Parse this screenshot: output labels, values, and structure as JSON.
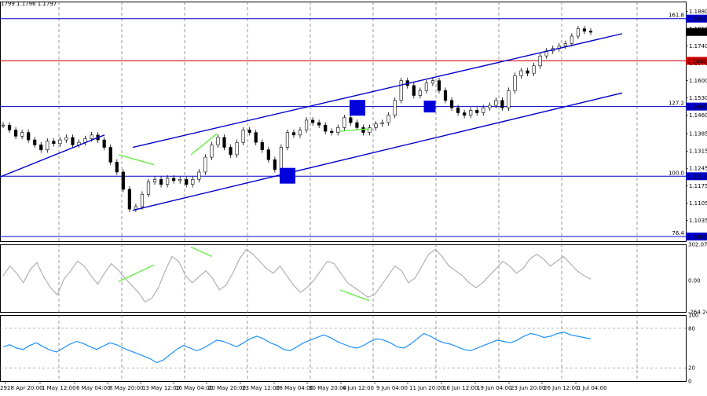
{
  "header": {
    "ohlc_text": "1799 1.1796 1.1797"
  },
  "chart_data": {
    "type": "line",
    "instrument_quote": "EURUSD",
    "x_axis": {
      "labels": [
        "28 Apr 20:00",
        "1 May 12:00",
        "6 May 04:00",
        "8 May 20:00",
        "13 May 12:00",
        "16 May 04:00",
        "20 May 20:00",
        "23 May 12:00",
        "28 May 04:00",
        "30 May 20:00",
        "4 Jun 12:00",
        "9 Jun 04:00",
        "11 Jun 20:00",
        "16 Jun 12:00",
        "19 Jun 04:00",
        "23 Jun 20:00",
        "26 Jun 12:00",
        "1 Jul 04:00"
      ],
      "first_label_partial": "29"
    },
    "price_panel": {
      "ylim": [
        1.095,
        1.192
      ],
      "ticks": [
        "1.1880",
        "1.1810",
        "1.1740",
        "1.1670",
        "1.1600",
        "1.1530",
        "1.1460",
        "1.1385",
        "1.1315",
        "1.1245",
        "1.1175",
        "1.1105",
        "1.1035"
      ],
      "current_price": "1.1797",
      "close_series": [
        1.142,
        1.14,
        1.1375,
        1.139,
        1.136,
        1.134,
        1.132,
        1.1355,
        1.1345,
        1.136,
        1.137,
        1.134,
        1.135,
        1.1365,
        1.138,
        1.136,
        1.133,
        1.127,
        1.123,
        1.116,
        1.108,
        1.109,
        1.114,
        1.119,
        1.12,
        1.118,
        1.1205,
        1.1195,
        1.12,
        1.118,
        1.12,
        1.123,
        1.129,
        1.134,
        1.137,
        1.133,
        1.13,
        1.135,
        1.14,
        1.139,
        1.135,
        1.132,
        1.128,
        1.124,
        1.133,
        1.139,
        1.138,
        1.14,
        1.144,
        1.143,
        1.142,
        1.1395,
        1.139,
        1.141,
        1.145,
        1.143,
        1.141,
        1.139,
        1.141,
        1.1425,
        1.143,
        1.146,
        1.152,
        1.16,
        1.158,
        1.154,
        1.156,
        1.159,
        1.16,
        1.156,
        1.152,
        1.149,
        1.147,
        1.146,
        1.148,
        1.147,
        1.149,
        1.15,
        1.152,
        1.149,
        1.156,
        1.162,
        1.164,
        1.163,
        1.166,
        1.17,
        1.172,
        1.173,
        1.174,
        1.175,
        1.178,
        1.181,
        1.18,
        1.1796
      ],
      "levels": [
        {
          "fib": "161.8",
          "price": "1.1851",
          "color": "#0000cc"
        },
        {
          "fib": "",
          "price": "1.1680",
          "color": "#cc0000"
        },
        {
          "fib": "127.2",
          "price": "1.1495",
          "color": "#0000cc"
        },
        {
          "fib": "100.0",
          "price": "1.1213",
          "color": "#0000cc"
        },
        {
          "fib": "76.4",
          "price": "1.0969",
          "color": "#0000cc"
        }
      ],
      "channel_color": "#0000cc",
      "markers_color": "#0000dd",
      "divergence_color": "#66ee44"
    },
    "cci_panel": {
      "ticks": [
        "302.077",
        "0.00",
        "-264.246"
      ],
      "ylim": [
        -264.246,
        302.077
      ],
      "color": "#aaaaaa",
      "series": [
        40,
        120,
        60,
        -20,
        90,
        150,
        30,
        -60,
        -120,
        10,
        80,
        160,
        120,
        40,
        -30,
        60,
        140,
        90,
        20,
        -40,
        -100,
        -180,
        -150,
        -60,
        80,
        200,
        160,
        40,
        -20,
        30,
        80,
        20,
        -80,
        -40,
        60,
        180,
        260,
        220,
        160,
        100,
        60,
        120,
        40,
        -40,
        -100,
        -60,
        0,
        80,
        160,
        140,
        60,
        -20,
        -60,
        -100,
        -140,
        -120,
        -40,
        40,
        120,
        80,
        -20,
        20,
        120,
        220,
        260,
        200,
        120,
        80,
        40,
        -20,
        -60,
        -20,
        40,
        100,
        160,
        120,
        60,
        100,
        180,
        220,
        180,
        120,
        160,
        200,
        140,
        80,
        40,
        10
      ]
    },
    "rsi_panel": {
      "ticks": [
        "100",
        "80",
        "20",
        "0"
      ],
      "ylim": [
        0,
        100
      ],
      "color": "#1e90ff",
      "series": [
        52,
        55,
        50,
        48,
        54,
        58,
        52,
        47,
        44,
        50,
        56,
        60,
        57,
        52,
        48,
        53,
        58,
        55,
        50,
        46,
        42,
        38,
        34,
        28,
        32,
        40,
        48,
        54,
        50,
        46,
        50,
        56,
        62,
        60,
        56,
        52,
        58,
        64,
        68,
        64,
        58,
        54,
        48,
        46,
        52,
        58,
        62,
        66,
        70,
        66,
        60,
        56,
        52,
        50,
        54,
        60,
        64,
        62,
        58,
        52,
        50,
        56,
        64,
        72,
        68,
        62,
        58,
        56,
        52,
        48,
        46,
        50,
        54,
        58,
        62,
        60,
        58,
        62,
        68,
        72,
        70,
        66,
        68,
        72,
        74,
        70,
        68,
        66,
        64
      ]
    }
  }
}
